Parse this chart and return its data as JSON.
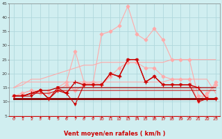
{
  "background_color": "#d0eef0",
  "grid_color": "#b0d8dc",
  "xlabel": "Vent moyen/en rafales ( km/h )",
  "xlabel_color": "#cc0000",
  "xlabel_fontsize": 6,
  "xtick_color": "#cc0000",
  "ytick_color": "#444444",
  "xlim": [
    -0.5,
    23.5
  ],
  "ylim": [
    5,
    45
  ],
  "yticks": [
    5,
    10,
    15,
    20,
    25,
    30,
    35,
    40,
    45
  ],
  "xticks": [
    0,
    1,
    2,
    3,
    4,
    5,
    6,
    7,
    8,
    9,
    10,
    11,
    12,
    13,
    14,
    15,
    16,
    17,
    18,
    19,
    20,
    21,
    22,
    23
  ],
  "lines": [
    {
      "x": [
        0,
        1,
        2,
        3,
        4,
        5,
        6,
        7,
        8,
        9,
        10,
        11,
        12,
        13,
        14,
        15,
        16,
        17,
        18,
        19,
        20,
        21,
        22,
        23
      ],
      "y": [
        12,
        13,
        14,
        14,
        14,
        15,
        17,
        28,
        17,
        16,
        34,
        35,
        37,
        44,
        34,
        32,
        36,
        32,
        25,
        25,
        25,
        12,
        12,
        17
      ],
      "color": "#ffaaaa",
      "lw": 0.8,
      "marker": "D",
      "ms": 2.5,
      "zorder": 2
    },
    {
      "x": [
        0,
        1,
        2,
        3,
        4,
        5,
        6,
        7,
        8,
        9,
        10,
        11,
        12,
        13,
        14,
        15,
        16,
        17,
        18,
        19,
        20,
        21,
        22,
        23
      ],
      "y": [
        15,
        16,
        18,
        18,
        19,
        20,
        21,
        22,
        23,
        23,
        24,
        24,
        24,
        24,
        24,
        24,
        24,
        24,
        25,
        25,
        25,
        25,
        25,
        25
      ],
      "color": "#ffaaaa",
      "lw": 0.8,
      "marker": null,
      "ms": 0,
      "zorder": 2
    },
    {
      "x": [
        0,
        1,
        2,
        3,
        4,
        5,
        6,
        7,
        8,
        9,
        10,
        11,
        12,
        13,
        14,
        15,
        16,
        17,
        18,
        19,
        20,
        21,
        22,
        23
      ],
      "y": [
        15,
        17,
        17,
        17,
        17,
        17,
        17,
        17,
        17,
        17,
        17,
        17,
        17,
        17,
        17,
        17,
        17,
        17,
        18,
        18,
        18,
        18,
        18,
        13
      ],
      "color": "#ffaaaa",
      "lw": 0.8,
      "marker": null,
      "ms": 0,
      "zorder": 2
    },
    {
      "x": [
        0,
        1,
        2,
        3,
        4,
        5,
        6,
        7,
        8,
        9,
        10,
        11,
        12,
        13,
        14,
        15,
        16,
        17,
        18,
        19,
        20,
        21,
        22,
        23
      ],
      "y": [
        12,
        13,
        14,
        13,
        13,
        14,
        16,
        14,
        16,
        17,
        16,
        19,
        22,
        24,
        24,
        22,
        22,
        19,
        18,
        18,
        18,
        10,
        13,
        16
      ],
      "color": "#ffaaaa",
      "lw": 0.8,
      "marker": "D",
      "ms": 2.5,
      "zorder": 2
    },
    {
      "x": [
        0,
        1,
        2,
        3,
        4,
        5,
        6,
        7,
        8,
        9,
        10,
        11,
        12,
        13,
        14,
        15,
        16,
        17,
        18,
        19,
        20,
        21,
        22,
        23
      ],
      "y": [
        11,
        11,
        11,
        11,
        11,
        11,
        11,
        11,
        11,
        11,
        11,
        11,
        11,
        11,
        11,
        11,
        11,
        11,
        11,
        11,
        11,
        11,
        11,
        11
      ],
      "color": "#880000",
      "lw": 2.0,
      "marker": null,
      "ms": 0,
      "zorder": 3
    },
    {
      "x": [
        0,
        1,
        2,
        3,
        4,
        5,
        6,
        7,
        8,
        9,
        10,
        11,
        12,
        13,
        14,
        15,
        16,
        17,
        18,
        19,
        20,
        21,
        22,
        23
      ],
      "y": [
        12,
        12,
        13,
        13,
        13,
        14,
        14,
        14,
        14,
        14,
        14,
        14,
        14,
        14,
        14,
        14,
        14,
        14,
        14,
        14,
        14,
        14,
        14,
        14
      ],
      "color": "#cc3333",
      "lw": 0.9,
      "marker": null,
      "ms": 0,
      "zorder": 3
    },
    {
      "x": [
        0,
        1,
        2,
        3,
        4,
        5,
        6,
        7,
        8,
        9,
        10,
        11,
        12,
        13,
        14,
        15,
        16,
        17,
        18,
        19,
        20,
        21,
        22,
        23
      ],
      "y": [
        12,
        12,
        13,
        14,
        14,
        15,
        15,
        15,
        15,
        15,
        15,
        15,
        15,
        15,
        15,
        15,
        15,
        15,
        15,
        15,
        15,
        15,
        15,
        15
      ],
      "color": "#aa0000",
      "lw": 0.9,
      "marker": null,
      "ms": 0,
      "zorder": 3
    },
    {
      "x": [
        0,
        1,
        2,
        3,
        4,
        5,
        6,
        7,
        8,
        9,
        10,
        11,
        12,
        13,
        14,
        15,
        16,
        17,
        18,
        19,
        20,
        21,
        22,
        23
      ],
      "y": [
        12,
        12,
        13,
        14,
        11,
        14,
        13,
        17,
        16,
        16,
        16,
        20,
        19,
        25,
        25,
        17,
        19,
        16,
        16,
        16,
        16,
        15,
        11,
        11
      ],
      "color": "#cc0000",
      "lw": 1.0,
      "marker": "+",
      "ms": 4,
      "zorder": 5
    },
    {
      "x": [
        0,
        1,
        2,
        3,
        4,
        5,
        6,
        7,
        8,
        9,
        10,
        11,
        12,
        13,
        14,
        15,
        16,
        17,
        18,
        19,
        20,
        21,
        22,
        23
      ],
      "y": [
        12,
        12,
        12,
        14,
        11,
        15,
        13,
        9,
        16,
        16,
        16,
        20,
        19,
        25,
        25,
        17,
        19,
        16,
        16,
        16,
        16,
        10,
        11,
        11
      ],
      "color": "#cc0000",
      "lw": 0.8,
      "marker": "v",
      "ms": 2.5,
      "zorder": 5
    }
  ]
}
